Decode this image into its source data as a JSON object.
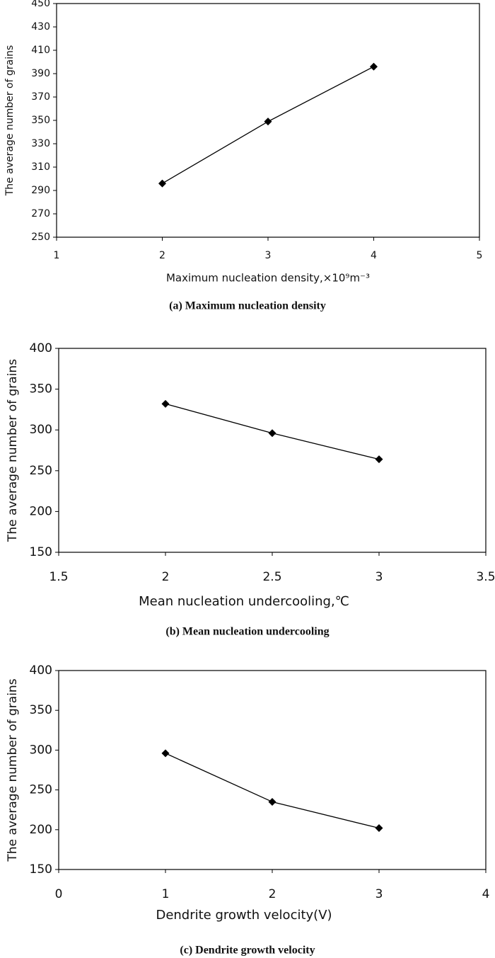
{
  "chart_data": [
    {
      "type": "line",
      "x": [
        2,
        3,
        4
      ],
      "values": [
        296,
        349,
        396
      ],
      "color": "#000000",
      "xlim": [
        1,
        5
      ],
      "xticks": [
        1,
        2,
        3,
        4,
        5
      ],
      "ylim": [
        250,
        450
      ],
      "yticks": [
        250,
        270,
        290,
        310,
        330,
        350,
        370,
        390,
        410,
        430,
        450
      ],
      "x_label": "Maximum nucleation density,×10⁹m⁻³",
      "y_label": "The average number of grains",
      "caption": "(a) Maximum nucleation density"
    },
    {
      "type": "line",
      "x": [
        2,
        2.5,
        3
      ],
      "values": [
        332,
        296,
        264
      ],
      "color": "#000000",
      "xlim": [
        1.5,
        3.5
      ],
      "xticks": [
        1.5,
        2,
        2.5,
        3,
        3.5
      ],
      "ylim": [
        150,
        400
      ],
      "yticks": [
        150,
        200,
        250,
        300,
        350,
        400
      ],
      "x_label": "Mean nucleation undercooling,℃",
      "y_label": "The average number of grains",
      "caption": "(b) Mean nucleation undercooling"
    },
    {
      "type": "line",
      "x": [
        1,
        2,
        3
      ],
      "values": [
        296,
        235,
        202
      ],
      "color": "#000000",
      "xlim": [
        0,
        4
      ],
      "xticks": [
        0,
        1,
        2,
        3,
        4
      ],
      "ylim": [
        150,
        400
      ],
      "yticks": [
        150,
        200,
        250,
        300,
        350,
        400
      ],
      "x_label": "Dendrite growth velocity(V)",
      "y_label": "The average number of grains",
      "caption": "(c) Dendrite growth velocity"
    }
  ]
}
